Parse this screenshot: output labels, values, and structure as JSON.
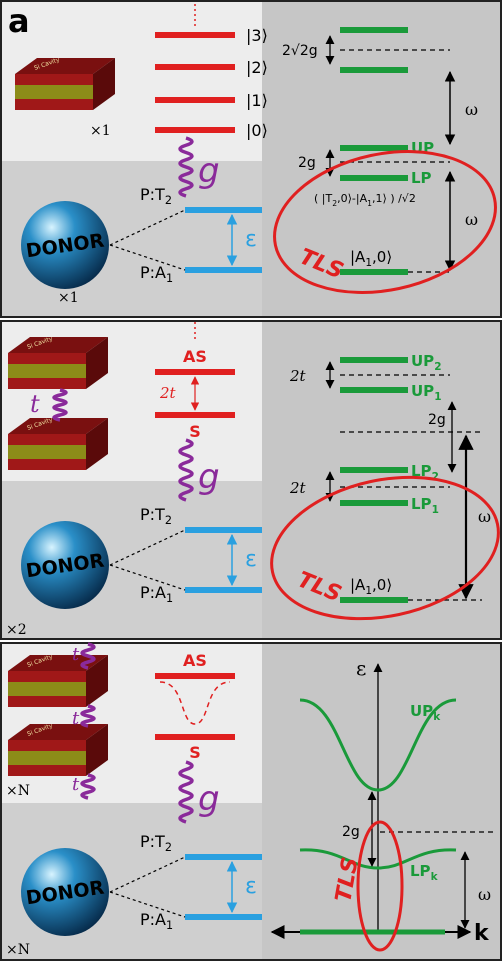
{
  "panels": [
    {
      "letter": "a",
      "cavity_label": "Si Cavity",
      "cavity_count": "×1",
      "levels": [
        "|3⟩",
        "|2⟩",
        "|1⟩",
        "|0⟩"
      ],
      "coupling": "g",
      "donor": "DONOR",
      "donor_count": "×1",
      "upper": [
        "P:T",
        "2"
      ],
      "lower": [
        "P:A",
        "1"
      ],
      "splitting": "ε",
      "spectrum": {
        "top_gap": "2√2g",
        "omega_top": "ω",
        "up": "UP",
        "lp": "LP",
        "gap": "2g",
        "state": [
          "( |T",
          "2",
          ",0⟩-|A",
          "1",
          ",1⟩ ) /√2"
        ],
        "omega_bottom": "ω",
        "tls": "TLS",
        "ground": [
          "|A",
          "1",
          ",0⟩"
        ]
      }
    },
    {
      "cavity_label": "Si Cavity",
      "hopping": "t",
      "antisym": "AS",
      "split": "2t",
      "sym": "S",
      "coupling": "g",
      "donor": "DONOR",
      "donor_count": "×2",
      "upper": [
        "P:T",
        "2"
      ],
      "lower": [
        "P:A",
        "1"
      ],
      "splitting": "ε",
      "spectrum": {
        "up2": [
          "UP",
          "2"
        ],
        "up1": [
          "UP",
          "1"
        ],
        "upper_split": "2t",
        "gap": "2g",
        "lp2": [
          "LP",
          "2"
        ],
        "lp1": [
          "LP",
          "1"
        ],
        "lower_split": "2t",
        "omega": "ω",
        "tls": "TLS",
        "ground": [
          "|A",
          "1",
          ",0⟩"
        ]
      }
    },
    {
      "cavity_label": "Si Cavity",
      "hopping": [
        "t",
        "t",
        "t"
      ],
      "antisym": "AS",
      "sym": "S",
      "coupling": "g",
      "cavity_count": "×N",
      "donor": "DONOR",
      "donor_count": "×N",
      "upper": [
        "P:T",
        "2"
      ],
      "lower": [
        "P:A",
        "1"
      ],
      "splitting": "ε",
      "spectrum": {
        "energy_axis": "ε",
        "momentum_axis": "k",
        "up": [
          "UP",
          "k"
        ],
        "lp": [
          "LP",
          "k"
        ],
        "gap": "2g",
        "omega": "ω",
        "tls": "TLS"
      }
    }
  ]
}
